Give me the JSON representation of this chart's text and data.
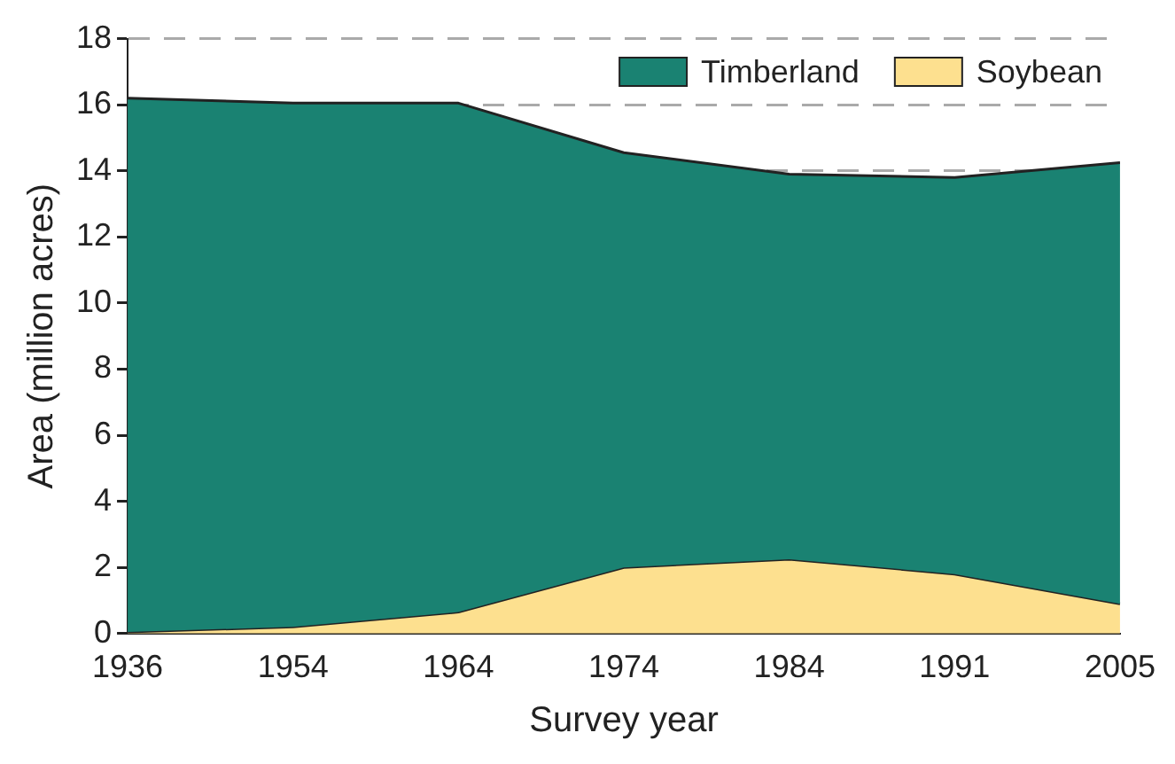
{
  "chart_data": {
    "type": "area",
    "xlabel": "Survey year",
    "ylabel": "Area (million acres)",
    "categories": [
      "1936",
      "1954",
      "1964",
      "1974",
      "1984",
      "1991",
      "2005"
    ],
    "series": [
      {
        "name": "Timberland",
        "color": "#1a8272",
        "values": [
          16.2,
          16.05,
          16.05,
          14.55,
          13.9,
          13.8,
          14.25
        ]
      },
      {
        "name": "Soybean",
        "color": "#fde08f",
        "values": [
          0.05,
          0.2,
          0.65,
          2.0,
          2.25,
          1.8,
          0.9
        ]
      }
    ],
    "ylim": [
      0,
      18
    ],
    "yticks": [
      0,
      2,
      4,
      6,
      8,
      10,
      12,
      14,
      16,
      18
    ],
    "grid": "y",
    "legend": "top right"
  }
}
